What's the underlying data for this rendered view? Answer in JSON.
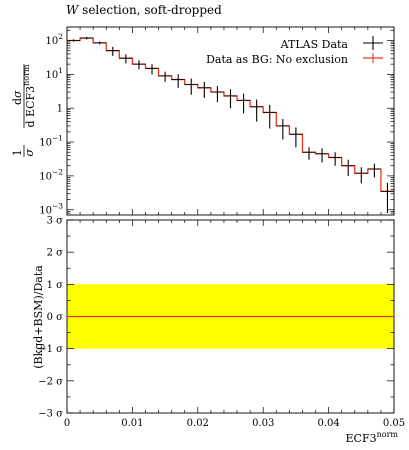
{
  "title": "W selection, soft-dropped",
  "title_italic_part": "W",
  "title_rest": " selection, soft-dropped",
  "ylabel_top": "1/σ dσ/d ECF3^norm",
  "ylabel_bottom": "(Bkgd+BSM)/Data",
  "xlabel": "ECF3^norm",
  "legend": {
    "data_label": "ATLAS Data",
    "mc_label": "Data as BG: No exclusion"
  },
  "colors": {
    "data": "#000000",
    "mc": "#e8371f",
    "band": "#ffff00"
  },
  "chart_data": [
    {
      "type": "line",
      "panel": "main",
      "yscale": "log",
      "xlim": [
        0,
        0.05
      ],
      "ylim": [
        0.0007,
        250
      ],
      "x_ticks": [
        "0",
        "0.01",
        "0.02",
        "0.03",
        "0.04",
        "0.05"
      ],
      "y_ticks": [
        "10^-3",
        "10^-2",
        "10^-1",
        "1",
        "10^1",
        "10^2"
      ],
      "bin_edges": [
        0,
        0.002,
        0.004,
        0.006,
        0.008,
        0.01,
        0.012,
        0.014,
        0.016,
        0.018,
        0.02,
        0.022,
        0.024,
        0.026,
        0.028,
        0.03,
        0.032,
        0.034,
        0.036,
        0.038,
        0.04,
        0.042,
        0.044,
        0.046,
        0.048,
        0.05
      ],
      "series": [
        {
          "name": "ATLAS Data",
          "style": "points_with_errors",
          "x": [
            0.001,
            0.003,
            0.005,
            0.007,
            0.009,
            0.011,
            0.013,
            0.015,
            0.017,
            0.019,
            0.021,
            0.023,
            0.025,
            0.027,
            0.029,
            0.031,
            0.033,
            0.035,
            0.037,
            0.039,
            0.041,
            0.043,
            0.045,
            0.047,
            0.049
          ],
          "values": [
            100,
            118,
            85,
            50,
            30,
            20,
            15,
            9,
            7,
            5,
            4,
            3,
            2.3,
            1.7,
            1.1,
            0.75,
            0.3,
            0.17,
            0.05,
            0.045,
            0.035,
            0.02,
            0.012,
            0.016,
            0.0035
          ],
          "err_low": [
            8,
            10,
            8,
            15,
            9,
            6,
            5,
            3,
            3,
            2.5,
            2,
            1.5,
            1.3,
            1,
            0.7,
            0.5,
            0.18,
            0.1,
            0.02,
            0.02,
            0.015,
            0.01,
            0.006,
            0.007,
            0.0027
          ],
          "err_high": [
            8,
            10,
            8,
            15,
            9,
            6,
            5,
            3,
            3,
            2.5,
            2,
            1.5,
            1.3,
            1,
            0.7,
            0.5,
            0.18,
            0.1,
            0.02,
            0.02,
            0.015,
            0.01,
            0.006,
            0.007,
            0.0027
          ]
        },
        {
          "name": "Data as BG: No exclusion",
          "style": "histogram",
          "values": [
            100,
            118,
            85,
            50,
            30,
            20,
            15,
            9,
            7,
            5,
            4,
            3,
            2.3,
            1.7,
            1.1,
            0.75,
            0.3,
            0.17,
            0.05,
            0.045,
            0.035,
            0.02,
            0.012,
            0.016,
            0.0035
          ]
        }
      ]
    },
    {
      "type": "line",
      "panel": "ratio",
      "xlim": [
        0,
        0.05
      ],
      "ylim": [
        -3,
        3
      ],
      "y_ticks": [
        "-3 σ",
        "-2 σ",
        "-1 σ",
        "0 σ",
        "1 σ",
        "2 σ",
        "3 σ"
      ],
      "band": [
        -1,
        1
      ],
      "series": [
        {
          "name": "Data as BG: No exclusion",
          "x": [
            0,
            0.05
          ],
          "values": [
            0,
            0
          ]
        }
      ]
    }
  ]
}
